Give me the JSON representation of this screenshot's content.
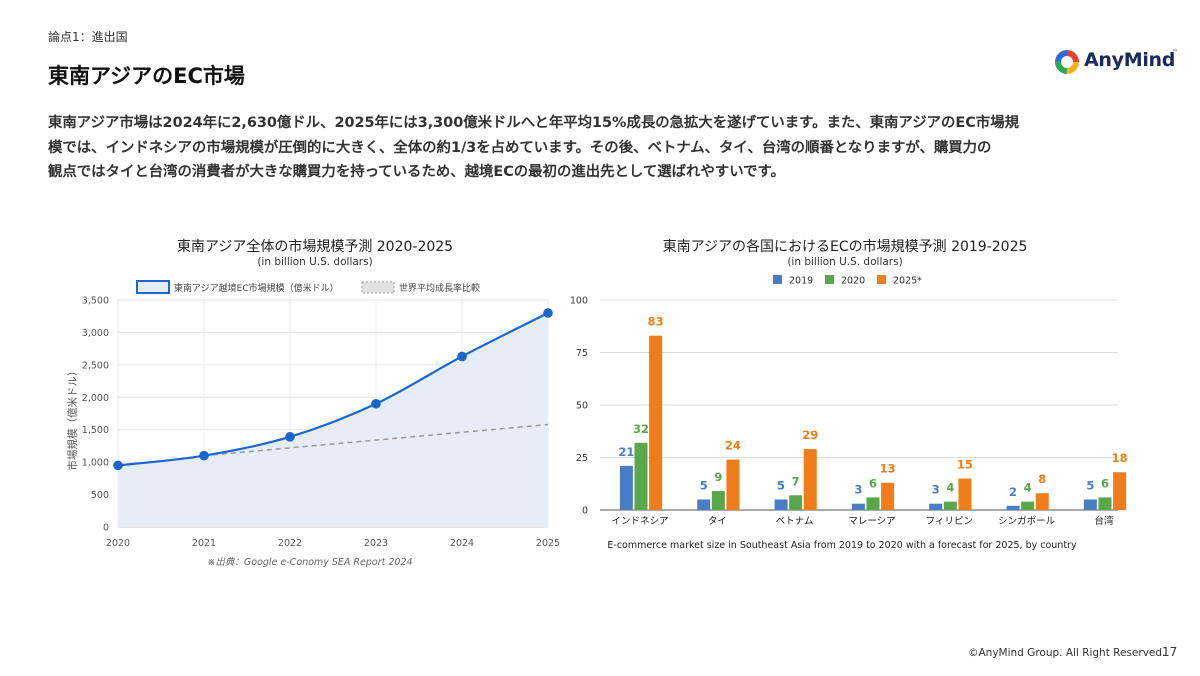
{
  "header": {
    "section_label": "論点1：進出国",
    "title": "東南アジアのEC市場",
    "brand": "AnyMind",
    "brand_tm": "™"
  },
  "summary": {
    "lines": [
      "東南アジア市場は2024年に2,630億ドル、2025年には3,300億米ドルへと年平均15%成長の急拡大を遂げています。また、東南アジアのEC市場規",
      "模では、インドネシアの市場規模が圧倒的に大きく、全体の約1/3を占めています。その後、ベトナム、タイ、台湾の順番となりますが、購買力の",
      "観点ではタイと台湾の消費者が大きな購買力を持っているため、越境ECの最初の進出先として選ばれやすいです。"
    ]
  },
  "colors": {
    "line_main": "#1a66cc",
    "area_fill": "#e6ecf8",
    "line_avg": "#999999",
    "bar_2019": "#4a7ec4",
    "bar_2020": "#5aa64a",
    "bar_2025": "#f07d1a"
  },
  "chart_data": [
    {
      "type": "line",
      "title": "東南アジア全体の市場規模予測 2020-2025",
      "subtitle": "(in billion U.S. dollars)",
      "ylabel": "市場規模（億米ドル）",
      "x": [
        2020,
        2021,
        2022,
        2023,
        2024,
        2025
      ],
      "x_tick_labels": [
        "2020",
        "2021",
        "2022",
        "2023",
        "2024",
        "2025"
      ],
      "ylim": [
        0,
        3500
      ],
      "y_ticks": [
        0,
        500,
        1000,
        1500,
        2000,
        2500,
        3000,
        3500
      ],
      "y_tick_labels": [
        "0",
        "500",
        "1,000",
        "1,500",
        "2,000",
        "2,500",
        "3,000",
        "3,500"
      ],
      "grid": true,
      "legend_position": "top",
      "series": [
        {
          "name": "東南アジア越境EC市場規模（億米ドル）",
          "style": "line-markers-area",
          "values": [
            950,
            1100,
            1390,
            1900,
            2630,
            3300
          ]
        },
        {
          "name": "世界平均成長率比較",
          "style": "dashed",
          "x": [
            2021,
            2025
          ],
          "values": [
            1100,
            1580
          ]
        }
      ],
      "source": "※出典：Google e-Conomy SEA Report 2024"
    },
    {
      "type": "bar",
      "title": "東南アジアの各国におけるECの市場規模予測 2019-2025",
      "subtitle": "(in billion U.S. dollars)",
      "caption": "E-commerce market size in Southeast Asia from 2019 to 2020 with a forecast for 2025, by country",
      "categories": [
        "インドネシア",
        "タイ",
        "ベトナム",
        "マレーシア",
        "フィリピン",
        "シンガポール",
        "台湾"
      ],
      "ylim": [
        0,
        100
      ],
      "y_ticks": [
        0,
        25,
        50,
        75,
        100
      ],
      "y_tick_labels": [
        "0",
        "25",
        "50",
        "75",
        "100"
      ],
      "grid": true,
      "legend_position": "top",
      "series": [
        {
          "name": "2019",
          "values": [
            21,
            5,
            5,
            3,
            3,
            2,
            5
          ]
        },
        {
          "name": "2020",
          "values": [
            32,
            9,
            7,
            6,
            4,
            4,
            6
          ]
        },
        {
          "name": "2025*",
          "values": [
            83,
            24,
            29,
            13,
            15,
            8,
            18
          ]
        }
      ]
    }
  ],
  "footer": {
    "copyright": "©AnyMind Group. All Right Reserved.",
    "page_number": "17"
  }
}
